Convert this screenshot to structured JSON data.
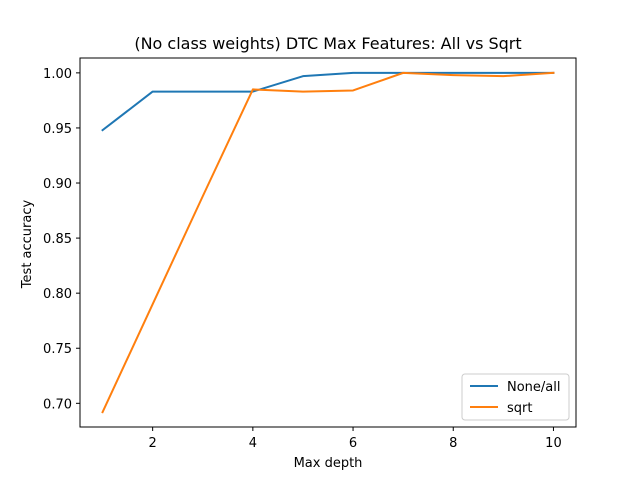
{
  "chart_data": {
    "type": "line",
    "title": "(No class weights) DTC Max Features: All vs Sqrt",
    "xlabel": "Max depth",
    "ylabel": "Test accuracy",
    "x": [
      1,
      2,
      3,
      4,
      5,
      6,
      7,
      8,
      9,
      10
    ],
    "xlim": [
      0.55,
      10.45
    ],
    "ylim": [
      0.6785,
      1.0135
    ],
    "xticks": [
      2,
      4,
      6,
      8,
      10
    ],
    "yticks": [
      0.7,
      0.75,
      0.8,
      0.85,
      0.9,
      0.95,
      1.0
    ],
    "xtick_labels": [
      "2",
      "4",
      "6",
      "8",
      "10"
    ],
    "ytick_labels": [
      "0.70",
      "0.75",
      "0.80",
      "0.85",
      "0.90",
      "0.95",
      "1.00"
    ],
    "grid": false,
    "legend_position": "lower-right",
    "series": [
      {
        "name": "None/all",
        "color": "#1f77b4",
        "values": [
          0.948,
          0.983,
          0.983,
          0.983,
          0.997,
          1.0,
          1.0,
          1.0,
          1.0,
          1.0
        ]
      },
      {
        "name": "sqrt",
        "color": "#ff7f0e",
        "values": [
          0.692,
          0.79,
          0.888,
          0.985,
          0.983,
          0.984,
          1.0,
          0.998,
          0.997,
          1.0
        ]
      }
    ]
  }
}
